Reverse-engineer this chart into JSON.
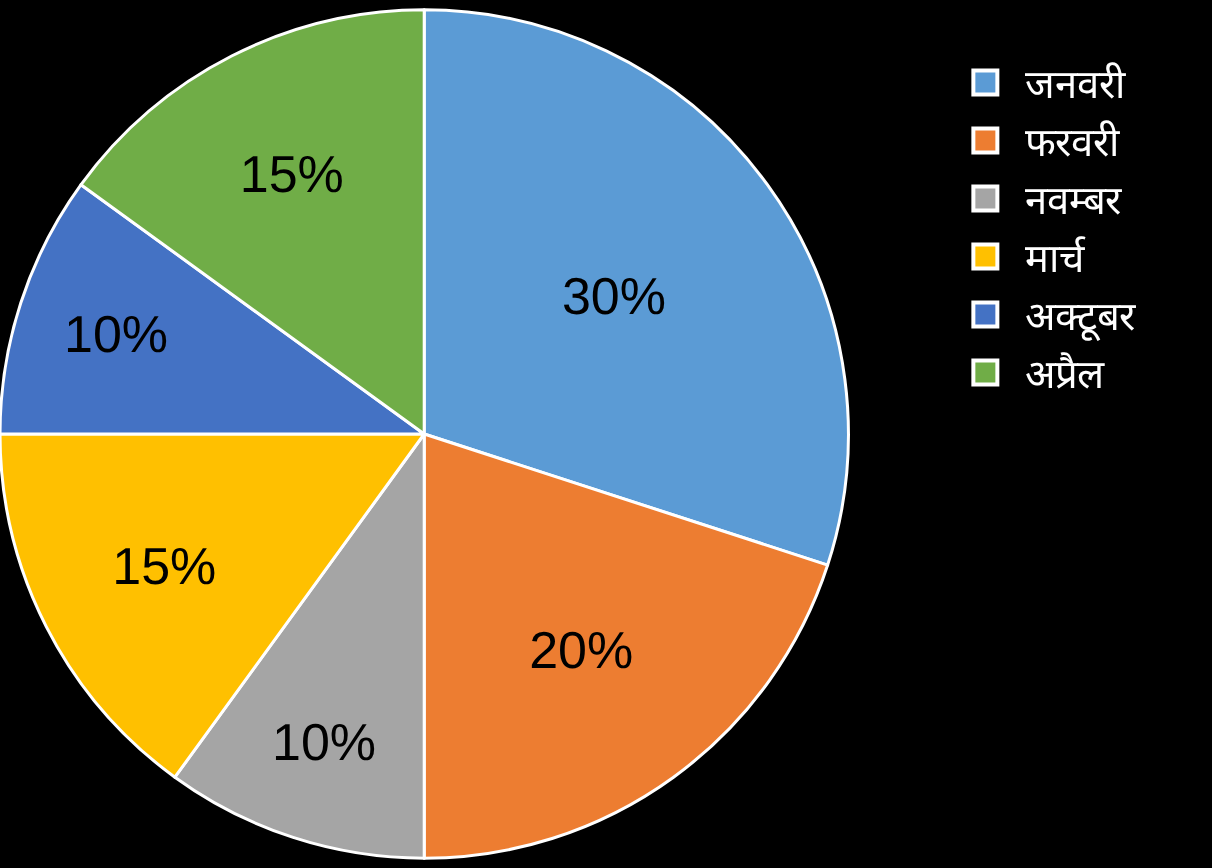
{
  "chart_data": {
    "type": "pie",
    "categories": [
      "जनवरी",
      "फरवरी",
      "नवम्बर",
      "मार्च",
      "अक्टूबर",
      "अप्रैल"
    ],
    "values": [
      30,
      20,
      10,
      15,
      10,
      15
    ],
    "colors": [
      "#5b9bd5",
      "#ed7d31",
      "#a5a5a5",
      "#ffc000",
      "#4472c4",
      "#70ad47"
    ],
    "value_labels": [
      "30%",
      "20%",
      "10%",
      "15%",
      "10%",
      "15%"
    ],
    "legend": "right"
  }
}
